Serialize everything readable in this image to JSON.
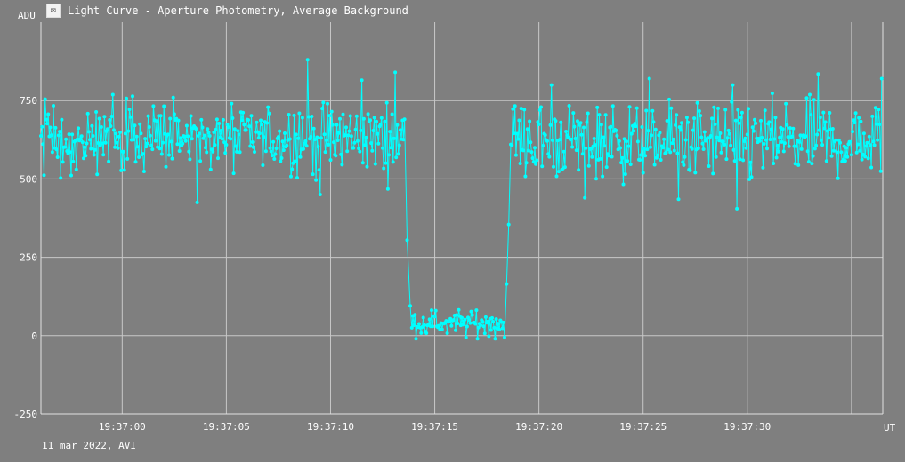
{
  "window": {
    "title": "Light Curve - Aperture Photometry, Average Background",
    "icon": "light-curve-app-icon"
  },
  "footer": {
    "caption": "11 mar 2022, AVI"
  },
  "colors": {
    "background": "#7f7f7f",
    "grid": "#c8c8c8",
    "series": "#00ffff"
  },
  "chart_data": {
    "type": "line",
    "title": "Light Curve - Aperture Photometry, Average Background",
    "ylabel": "ADU",
    "xlabel": "UT",
    "ylim": [
      -250,
      1000
    ],
    "yticks": [
      -250,
      0,
      250,
      500,
      750
    ],
    "xlim": [
      "19:36:56.1",
      "19:37:36.5"
    ],
    "xticks": [
      "19:37:00",
      "19:37:05",
      "19:37:10",
      "19:37:15",
      "19:37:20",
      "19:37:25",
      "19:37:30"
    ],
    "grid": true,
    "markers": true,
    "series": [
      {
        "segments": [
          {
            "t_start": "19:36:56.1",
            "t_end": "19:37:13.6",
            "mean": 630,
            "scatter": 55,
            "min": 420,
            "max": 880
          },
          {
            "t_start": "19:37:13.6",
            "t_end": "19:37:13.9",
            "values": [
              305,
              95
            ]
          },
          {
            "t_start": "19:37:13.9",
            "t_end": "19:37:18.4",
            "mean": 40,
            "scatter": 20,
            "min": -10,
            "max": 90
          },
          {
            "t_start": "19:37:18.4",
            "t_end": "19:37:18.7",
            "values": [
              165,
              355,
              610
            ]
          },
          {
            "t_start": "19:37:18.7",
            "t_end": "19:37:36.5",
            "mean": 620,
            "scatter": 60,
            "min": 400,
            "max": 840
          }
        ],
        "peaks": [
          {
            "t": "19:37:08.9",
            "value": 880
          },
          {
            "t": "19:37:13.1",
            "value": 840
          },
          {
            "t": "19:37:33.4",
            "value": 835
          },
          {
            "t": "19:37:25.3",
            "value": 820
          },
          {
            "t": "19:37:37.0",
            "value": 820
          },
          {
            "t": "19:37:11.5",
            "value": 815
          },
          {
            "t": "19:37:20.6",
            "value": 800
          },
          {
            "t": "19:37:29.3",
            "value": 800
          }
        ],
        "dips": [
          {
            "t": "19:37:03.6",
            "value": 425
          },
          {
            "t": "19:37:29.5",
            "value": 405
          },
          {
            "t": "19:37:09.5",
            "value": 450
          },
          {
            "t": "19:37:26.7",
            "value": 435
          },
          {
            "t": "19:37:22.2",
            "value": 440
          }
        ]
      }
    ]
  }
}
